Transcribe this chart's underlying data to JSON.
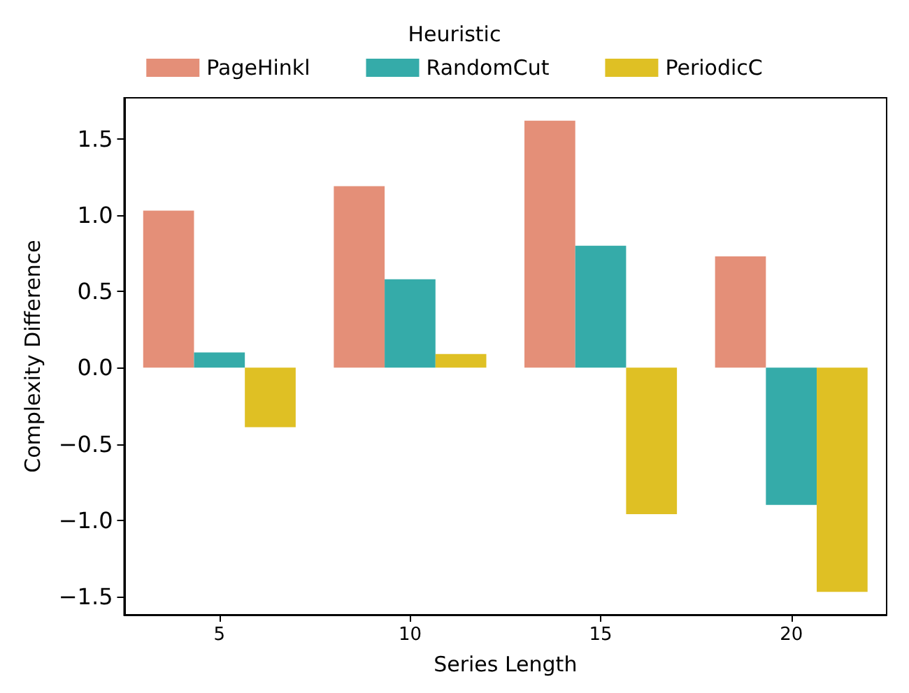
{
  "chart_data": {
    "type": "bar",
    "xlabel": "Series Length",
    "ylabel": "Complexity Difference",
    "legend_title": "Heuristic",
    "categories": [
      "5",
      "10",
      "15",
      "20"
    ],
    "series": [
      {
        "name": "PageHinkl",
        "color": "#e48f78",
        "values": [
          1.03,
          1.19,
          1.62,
          0.73
        ]
      },
      {
        "name": "RandomCut",
        "color": "#35aba9",
        "values": [
          0.1,
          0.58,
          0.8,
          -0.9
        ]
      },
      {
        "name": "PeriodicC",
        "color": "#dfc024",
        "values": [
          -0.39,
          0.09,
          -0.96,
          -1.47
        ]
      }
    ],
    "ylim": [
      -1.62,
      1.77
    ],
    "yticks": [
      {
        "value": -1.5,
        "label": "−1.5"
      },
      {
        "value": -1,
        "label": "−1.0"
      },
      {
        "value": -0.5,
        "label": "−0.5"
      },
      {
        "value": 0,
        "label": "0.0"
      },
      {
        "value": 0.5,
        "label": "0.5"
      },
      {
        "value": 1,
        "label": "1.0"
      },
      {
        "value": 1.5,
        "label": "1.5"
      }
    ],
    "grid": false,
    "legend": "top"
  }
}
